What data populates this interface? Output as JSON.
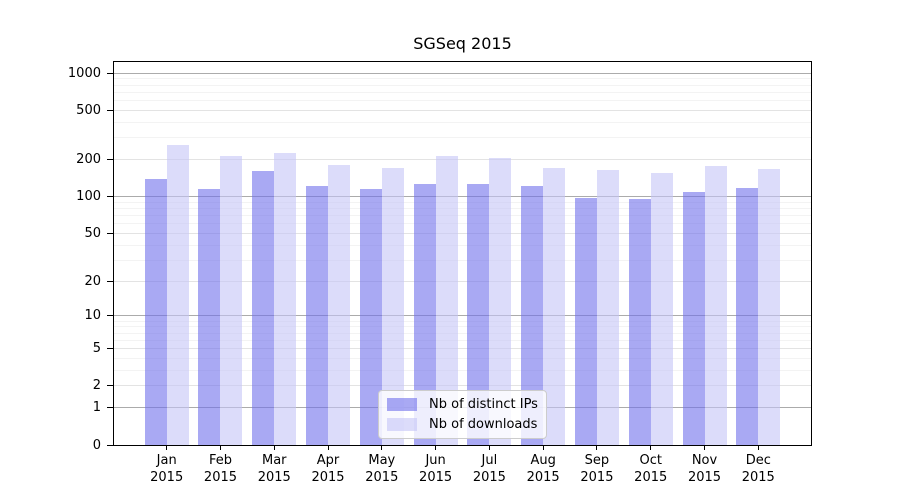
{
  "title": "SGSeq 2015",
  "chart_data": {
    "type": "bar",
    "title": "SGSeq 2015",
    "months": [
      "Jan",
      "Feb",
      "Mar",
      "Apr",
      "May",
      "Jun",
      "Jul",
      "Aug",
      "Sep",
      "Oct",
      "Nov",
      "Dec"
    ],
    "year": "2015",
    "series": [
      {
        "name": "Nb of distinct IPs",
        "color": "rgba(112,112,235,0.6)",
        "values": [
          139,
          115,
          162,
          123,
          116,
          127,
          128,
          122,
          98,
          95,
          109,
          117
        ]
      },
      {
        "name": "Nb of downloads",
        "color": "rgba(197,197,247,0.6)",
        "values": [
          262,
          215,
          228,
          180,
          170,
          214,
          207,
          172,
          165,
          156,
          179,
          169
        ]
      }
    ],
    "yscale": "log1p",
    "ylim": [
      0,
      1000
    ],
    "yticks": [
      0,
      1,
      2,
      5,
      10,
      20,
      50,
      100,
      200,
      500,
      1000
    ],
    "ygrid_major": [
      1,
      10,
      100,
      1000
    ],
    "ygrid_mid": [
      2,
      5,
      20,
      50,
      200,
      500
    ],
    "ygrid_minor": [
      3,
      4,
      6,
      7,
      8,
      9,
      30,
      40,
      60,
      70,
      80,
      90,
      300,
      400,
      600,
      700,
      800,
      900
    ],
    "grid": "on",
    "legend_position": "lower center-left inside plot",
    "xlabel": "",
    "ylabel": ""
  },
  "legend": {
    "items": [
      {
        "label": "Nb of distinct IPs",
        "color": "rgba(112,112,235,0.6)"
      },
      {
        "label": "Nb of downloads",
        "color": "rgba(197,197,247,0.6)"
      }
    ]
  }
}
